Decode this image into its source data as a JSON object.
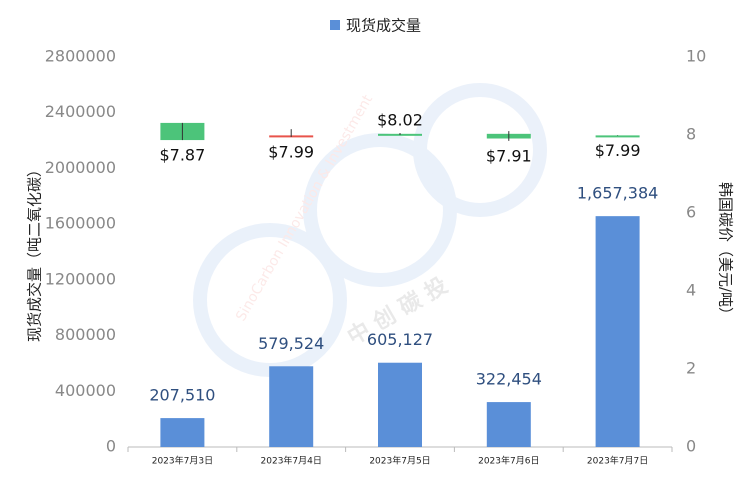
{
  "chart_data": {
    "type": "bar",
    "legend_position": "top",
    "grid": false,
    "categories": [
      "2023年7月3日",
      "2023年7月4日",
      "2023年7月5日",
      "2023年7月6日",
      "2023年7月7日"
    ],
    "series": [
      {
        "name": "现货成交量",
        "color": "#5a8fd8",
        "values": [
          207510,
          579524,
          605127,
          322454,
          1657384
        ],
        "value_labels": [
          "207,510",
          "579,524",
          "605,127",
          "322,454",
          "1,657,384"
        ]
      }
    ],
    "candles": {
      "type": "candlestick",
      "axis": "y2",
      "up_color": "#e8534b",
      "down_color": "#4cc47a",
      "open": [
        8.31,
        7.95,
        8.03,
        8.03,
        7.99
      ],
      "close": [
        7.87,
        7.99,
        8.02,
        7.91,
        7.99
      ],
      "high": [
        8.31,
        8.15,
        8.05,
        8.1,
        8.0
      ],
      "low": [
        7.87,
        7.95,
        8.0,
        7.85,
        7.99
      ],
      "value_labels": [
        "$7.87",
        "$7.99",
        "$8.02",
        "$7.91",
        "$7.99"
      ],
      "label_positions": [
        "below",
        "below",
        "above",
        "below",
        "below"
      ]
    },
    "ylabel": "现货成交量（吨二氧化碳）",
    "y2label": "韩国碳价（美元/吨）",
    "ylim": [
      0,
      2800000
    ],
    "yticks": [
      0,
      400000,
      800000,
      1200000,
      1600000,
      2000000,
      2400000,
      2800000
    ],
    "y2lim": [
      0,
      10
    ],
    "y2ticks": [
      0,
      2,
      4,
      6,
      8,
      10
    ],
    "watermark": [
      "SinoCarbon Innovation & Investment",
      "中 创 碳 投"
    ]
  }
}
